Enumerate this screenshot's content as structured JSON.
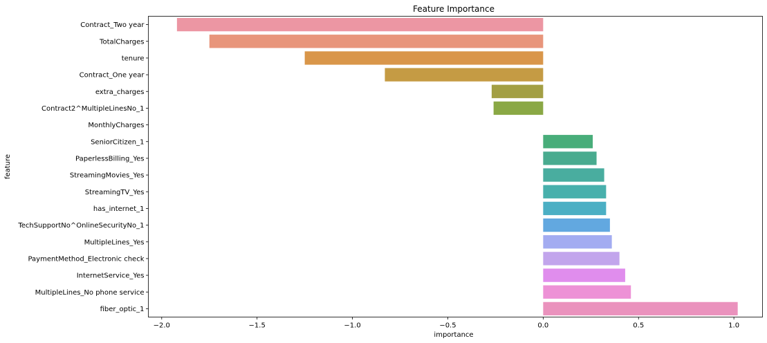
{
  "chart_data": {
    "type": "bar",
    "orientation": "horizontal",
    "title": "Feature Importance",
    "xlabel": "importance",
    "ylabel": "feature",
    "xlim": [
      -2.07,
      1.15
    ],
    "xticks": [
      -2.0,
      -1.5,
      -1.0,
      -0.5,
      0.0,
      0.5,
      1.0
    ],
    "xtick_labels": [
      "−2.0",
      "−1.5",
      "−1.0",
      "−0.5",
      "0.0",
      "0.5",
      "1.0"
    ],
    "grid": false,
    "categories": [
      "Contract_Two year",
      "TotalCharges",
      "tenure",
      "Contract_One year",
      "extra_charges",
      "Contract2^MultipleLinesNo_1",
      "MonthlyCharges",
      "SeniorCitizen_1",
      "PaperlessBilling_Yes",
      "StreamingMovies_Yes",
      "StreamingTV_Yes",
      "has_internet_1",
      "TechSupportNo^OnlineSecurityNo_1",
      "MultipleLines_Yes",
      "PaymentMethod_Electronic check",
      "InternetService_Yes",
      "MultipleLines_No phone service",
      "fiber_optic_1"
    ],
    "values": [
      -1.92,
      -1.75,
      -1.25,
      -0.83,
      -0.27,
      -0.26,
      0.0,
      0.26,
      0.28,
      0.32,
      0.33,
      0.33,
      0.35,
      0.36,
      0.4,
      0.43,
      0.46,
      1.02
    ],
    "colors": [
      "#ec96a3",
      "#e8957b",
      "#d9964a",
      "#c59b44",
      "#a39f44",
      "#8aa845",
      "#ffffff",
      "#48ad7a",
      "#49ab8f",
      "#49ad9f",
      "#48b0ac",
      "#4bafc4",
      "#62a8e0",
      "#a3acf1",
      "#c2a5ec",
      "#e08ded",
      "#ed91d6",
      "#ea92bd"
    ]
  }
}
